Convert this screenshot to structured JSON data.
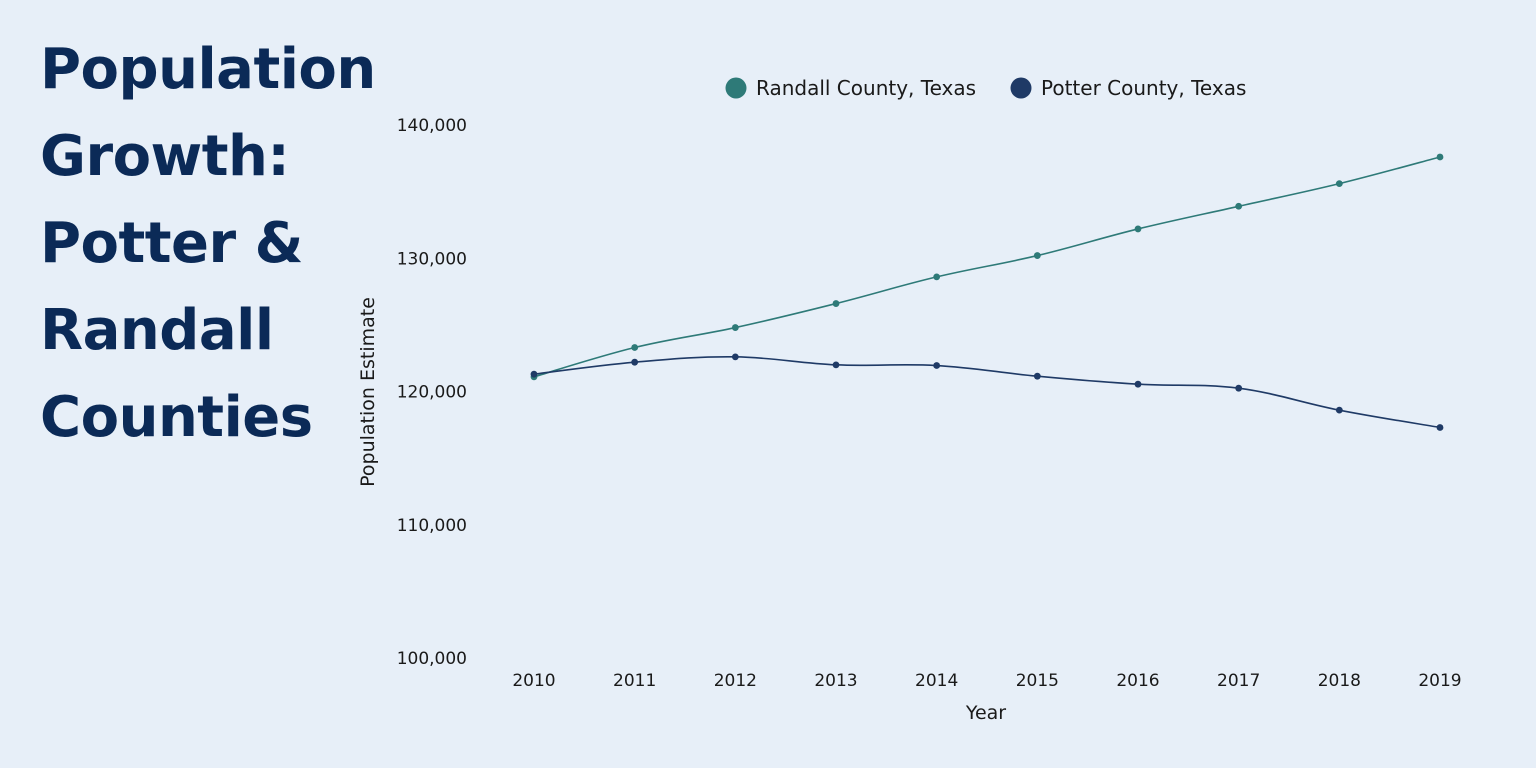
{
  "title_lines": [
    "Population",
    "Growth:",
    "Potter &",
    "Randall",
    "Counties"
  ],
  "chart_data": {
    "type": "line",
    "title": "Population Growth: Potter & Randall Counties",
    "xlabel": "Year",
    "ylabel": "Population Estimate",
    "x": [
      2010,
      2011,
      2012,
      2013,
      2014,
      2015,
      2016,
      2017,
      2018,
      2019
    ],
    "ylim": [
      100000,
      140000
    ],
    "yticks": [
      100000,
      110000,
      120000,
      130000,
      140000
    ],
    "ytick_labels": [
      "100,000",
      "110,000",
      "120,000",
      "130,000",
      "140,000"
    ],
    "xtick_labels": [
      "2010",
      "2011",
      "2012",
      "2013",
      "2014",
      "2015",
      "2016",
      "2017",
      "2018",
      "2019"
    ],
    "grid": false,
    "legend_position": "top",
    "series": [
      {
        "name": "Randall County, Texas",
        "color": "#2e7a78",
        "values": [
          121100,
          123300,
          124800,
          126600,
          128600,
          130200,
          132200,
          133900,
          135600,
          137600
        ]
      },
      {
        "name": "Potter County, Texas",
        "color": "#1f3a66",
        "values": [
          121300,
          122200,
          122600,
          122000,
          121950,
          121150,
          120550,
          120250,
          118600,
          117300
        ]
      }
    ]
  }
}
